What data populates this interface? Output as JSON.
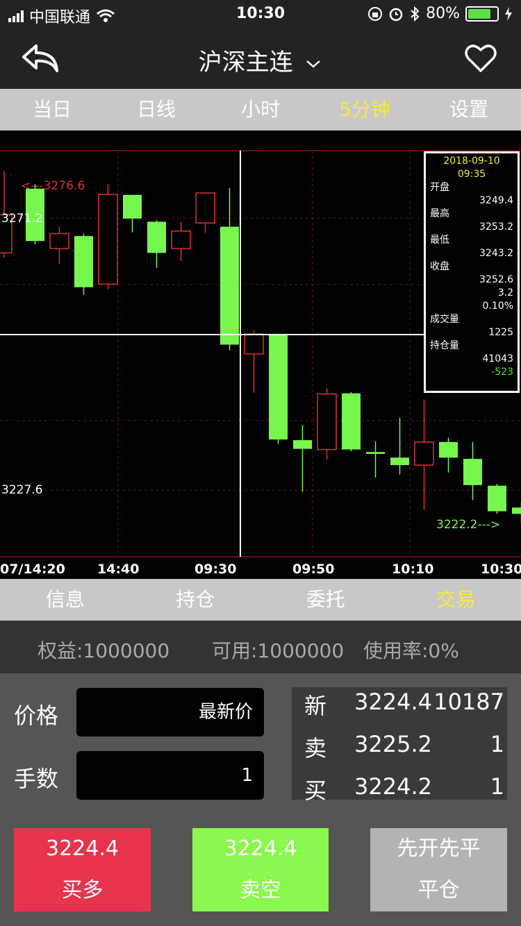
{
  "status_bar": {
    "carrier": "中国联通",
    "time": "10:30",
    "battery": "80%",
    "battery_level": 0.8
  },
  "nav": {
    "title": "沪深主连",
    "icons": [
      "back-icon",
      "chevron-down-icon",
      "heart-icon"
    ]
  },
  "period_tabs": [
    {
      "label": "当日",
      "active": false
    },
    {
      "label": "日线",
      "active": false
    },
    {
      "label": "小时",
      "active": false
    },
    {
      "label": "5分钟",
      "active": true
    },
    {
      "label": "设置",
      "active": false
    }
  ],
  "chart": {
    "price_labels": {
      "high_marker": "<---3276.6",
      "level_upper": "3271.2",
      "level_lower": "3227.6",
      "low_marker": "3222.2--->"
    },
    "x_axis": [
      "07/14:20",
      "14:40",
      "09:30",
      "09:50",
      "10:10",
      "10:30"
    ],
    "info": {
      "date": "2018-09-10",
      "time": "09:35",
      "open_label": "开盘",
      "open": "3249.4",
      "high_label": "最高",
      "high": "3253.2",
      "low_label": "最低",
      "low": "3243.2",
      "close_label": "收盘",
      "close": "3252.6",
      "change": "3.2",
      "change_pct": "0.10%",
      "volume_label": "成交量",
      "volume": "1225",
      "oi_label": "持仓量",
      "oi": "41043",
      "oi_change": "-523"
    }
  },
  "chart_data": {
    "type": "candlestick",
    "y_axis_labels": [
      "3271.2",
      "3227.6"
    ],
    "x_ticks": [
      "07/14:20",
      "14:40",
      "09:30",
      "09:50",
      "10:10",
      "10:30"
    ],
    "colors": {
      "up": "#e03030",
      "down": "#77f74e"
    },
    "candles": [
      {
        "o": 3265.6,
        "h": 3278.7,
        "c": 3271.7,
        "l": 3264.8,
        "up": true,
        "partial": true
      },
      {
        "o": 3275.9,
        "h": 3276.6,
        "c": 3267.5,
        "l": 3267.0,
        "up": false
      },
      {
        "o": 3266.3,
        "h": 3269.8,
        "c": 3268.7,
        "l": 3263.8,
        "up": true
      },
      {
        "o": 3268.3,
        "h": 3268.7,
        "c": 3260.1,
        "l": 3258.9,
        "up": false
      },
      {
        "o": 3260.6,
        "h": 3276.6,
        "c": 3275.0,
        "l": 3259.8,
        "up": true
      },
      {
        "o": 3274.9,
        "h": 3274.9,
        "c": 3271.1,
        "l": 3268.9,
        "up": false
      },
      {
        "o": 3270.6,
        "h": 3270.8,
        "c": 3265.6,
        "l": 3263.2,
        "up": false
      },
      {
        "o": 3266.3,
        "h": 3270.6,
        "c": 3269.1,
        "l": 3264.3,
        "up": true
      },
      {
        "o": 3270.4,
        "h": 3275.4,
        "c": 3275.2,
        "l": 3268.8,
        "up": true
      },
      {
        "o": 3269.8,
        "h": 3276.0,
        "c": 3250.9,
        "l": 3250.0,
        "up": false
      },
      {
        "o": 3249.4,
        "h": 3253.2,
        "c": 3252.6,
        "l": 3243.2,
        "up": true
      },
      {
        "o": 3252.6,
        "h": 3252.6,
        "c": 3235.7,
        "l": 3235.0,
        "up": false
      },
      {
        "o": 3235.6,
        "h": 3238.0,
        "c": 3234.2,
        "l": 3227.3,
        "up": false
      },
      {
        "o": 3234.1,
        "h": 3243.9,
        "c": 3243.0,
        "l": 3232.5,
        "up": true
      },
      {
        "o": 3243.1,
        "h": 3243.3,
        "c": 3234.1,
        "l": 3233.8,
        "up": false
      },
      {
        "o": 3233.7,
        "h": 3235.4,
        "c": 3233.4,
        "l": 3229.6,
        "up": false
      },
      {
        "o": 3232.8,
        "h": 3239.2,
        "c": 3231.6,
        "l": 3230.1,
        "up": false
      },
      {
        "o": 3231.6,
        "h": 3242.1,
        "c": 3235.3,
        "l": 3224.4,
        "up": true
      },
      {
        "o": 3235.3,
        "h": 3236.0,
        "c": 3232.8,
        "l": 3230.4,
        "up": false
      },
      {
        "o": 3232.6,
        "h": 3235.3,
        "c": 3228.4,
        "l": 3226.0,
        "up": false
      },
      {
        "o": 3228.3,
        "h": 3228.6,
        "c": 3224.2,
        "l": 3223.8,
        "up": false
      },
      {
        "o": 3224.8,
        "h": 3225.6,
        "c": 3223.8,
        "l": 3222.2,
        "up": false
      }
    ]
  },
  "bottom_tabs": [
    {
      "label": "信息",
      "active": false
    },
    {
      "label": "持仓",
      "active": false
    },
    {
      "label": "委托",
      "active": false
    },
    {
      "label": "交易",
      "active": true
    }
  ],
  "account": {
    "equity": "权益:1000000",
    "available": "可用:1000000",
    "usage": "使用率:0%"
  },
  "order_form": {
    "price_label": "价格",
    "price_value": "最新价",
    "qty_label": "手数",
    "qty_value": "1"
  },
  "quote": {
    "last": {
      "label": "新",
      "price": "3224.4",
      "volume": "10187"
    },
    "ask": {
      "label": "卖",
      "price": "3225.2",
      "volume": "1"
    },
    "bid": {
      "label": "买",
      "price": "3224.2",
      "volume": "1"
    }
  },
  "buttons": {
    "buy_long": {
      "price": "3224.4",
      "label": "买多",
      "color": "#e9344e"
    },
    "sell_short": {
      "price": "3224.4",
      "label": "卖空",
      "color": "#8af84e"
    },
    "close": {
      "mode": "先开先平",
      "label": "平仓",
      "color": "#b3b3b3"
    }
  }
}
